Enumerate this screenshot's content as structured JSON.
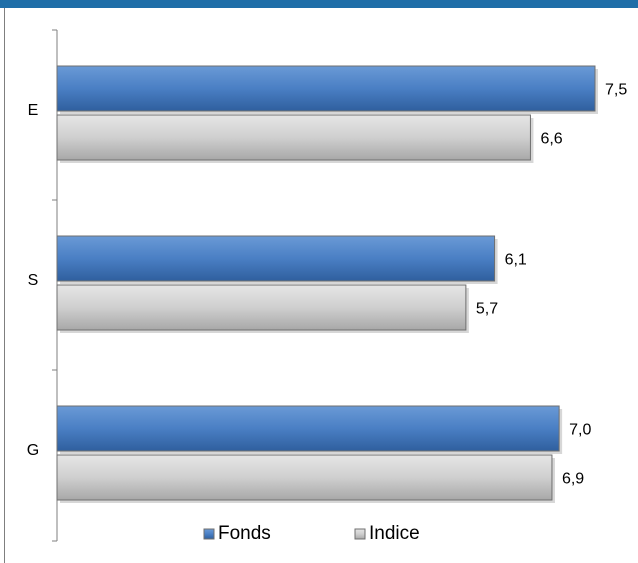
{
  "chart_data": {
    "type": "bar",
    "orientation": "horizontal",
    "categories": [
      "E",
      "S",
      "G"
    ],
    "series": [
      {
        "name": "Fonds",
        "values": [
          7.5,
          6.1,
          7.0
        ],
        "labels": [
          "7,5",
          "6,1",
          "7,0"
        ],
        "color": "#4a7fc4"
      },
      {
        "name": "Indice",
        "values": [
          6.6,
          5.7,
          6.9
        ],
        "labels": [
          "6,6",
          "5,7",
          "6,9"
        ],
        "color": "#cfcfcf"
      }
    ],
    "xlim": [
      0,
      7.5
    ],
    "grid": false,
    "legend_position": "bottom"
  },
  "colors": {
    "header_band": "#1f6ea8",
    "bar_border": "#6f6f6f",
    "axis": "#7f7f7f"
  }
}
